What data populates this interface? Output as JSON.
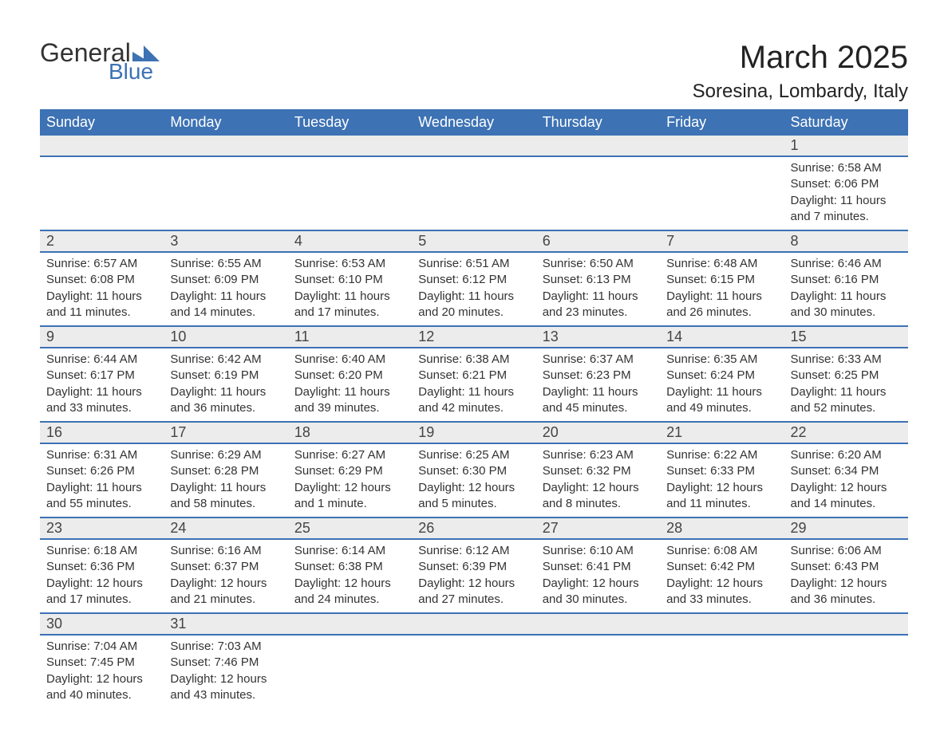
{
  "brand": {
    "text_general": "General",
    "text_blue": "Blue",
    "mark_color": "#3d72b4"
  },
  "title": "March 2025",
  "location": "Soresina, Lombardy, Italy",
  "colors": {
    "header_bg": "#3d72b4",
    "header_text": "#ffffff",
    "daynum_bg": "#ececec",
    "row_border": "#3d72b4",
    "body_text": "#333333",
    "page_bg": "#ffffff"
  },
  "fonts": {
    "title_size_pt": 40,
    "location_size_pt": 24,
    "weekday_size_pt": 18,
    "daynum_size_pt": 18,
    "detail_size_pt": 15,
    "family": "Arial"
  },
  "weekdays": [
    "Sunday",
    "Monday",
    "Tuesday",
    "Wednesday",
    "Thursday",
    "Friday",
    "Saturday"
  ],
  "weeks": [
    [
      null,
      null,
      null,
      null,
      null,
      null,
      {
        "n": "1",
        "sunrise": "Sunrise: 6:58 AM",
        "sunset": "Sunset: 6:06 PM",
        "daylight": "Daylight: 11 hours and 7 minutes."
      }
    ],
    [
      {
        "n": "2",
        "sunrise": "Sunrise: 6:57 AM",
        "sunset": "Sunset: 6:08 PM",
        "daylight": "Daylight: 11 hours and 11 minutes."
      },
      {
        "n": "3",
        "sunrise": "Sunrise: 6:55 AM",
        "sunset": "Sunset: 6:09 PM",
        "daylight": "Daylight: 11 hours and 14 minutes."
      },
      {
        "n": "4",
        "sunrise": "Sunrise: 6:53 AM",
        "sunset": "Sunset: 6:10 PM",
        "daylight": "Daylight: 11 hours and 17 minutes."
      },
      {
        "n": "5",
        "sunrise": "Sunrise: 6:51 AM",
        "sunset": "Sunset: 6:12 PM",
        "daylight": "Daylight: 11 hours and 20 minutes."
      },
      {
        "n": "6",
        "sunrise": "Sunrise: 6:50 AM",
        "sunset": "Sunset: 6:13 PM",
        "daylight": "Daylight: 11 hours and 23 minutes."
      },
      {
        "n": "7",
        "sunrise": "Sunrise: 6:48 AM",
        "sunset": "Sunset: 6:15 PM",
        "daylight": "Daylight: 11 hours and 26 minutes."
      },
      {
        "n": "8",
        "sunrise": "Sunrise: 6:46 AM",
        "sunset": "Sunset: 6:16 PM",
        "daylight": "Daylight: 11 hours and 30 minutes."
      }
    ],
    [
      {
        "n": "9",
        "sunrise": "Sunrise: 6:44 AM",
        "sunset": "Sunset: 6:17 PM",
        "daylight": "Daylight: 11 hours and 33 minutes."
      },
      {
        "n": "10",
        "sunrise": "Sunrise: 6:42 AM",
        "sunset": "Sunset: 6:19 PM",
        "daylight": "Daylight: 11 hours and 36 minutes."
      },
      {
        "n": "11",
        "sunrise": "Sunrise: 6:40 AM",
        "sunset": "Sunset: 6:20 PM",
        "daylight": "Daylight: 11 hours and 39 minutes."
      },
      {
        "n": "12",
        "sunrise": "Sunrise: 6:38 AM",
        "sunset": "Sunset: 6:21 PM",
        "daylight": "Daylight: 11 hours and 42 minutes."
      },
      {
        "n": "13",
        "sunrise": "Sunrise: 6:37 AM",
        "sunset": "Sunset: 6:23 PM",
        "daylight": "Daylight: 11 hours and 45 minutes."
      },
      {
        "n": "14",
        "sunrise": "Sunrise: 6:35 AM",
        "sunset": "Sunset: 6:24 PM",
        "daylight": "Daylight: 11 hours and 49 minutes."
      },
      {
        "n": "15",
        "sunrise": "Sunrise: 6:33 AM",
        "sunset": "Sunset: 6:25 PM",
        "daylight": "Daylight: 11 hours and 52 minutes."
      }
    ],
    [
      {
        "n": "16",
        "sunrise": "Sunrise: 6:31 AM",
        "sunset": "Sunset: 6:26 PM",
        "daylight": "Daylight: 11 hours and 55 minutes."
      },
      {
        "n": "17",
        "sunrise": "Sunrise: 6:29 AM",
        "sunset": "Sunset: 6:28 PM",
        "daylight": "Daylight: 11 hours and 58 minutes."
      },
      {
        "n": "18",
        "sunrise": "Sunrise: 6:27 AM",
        "sunset": "Sunset: 6:29 PM",
        "daylight": "Daylight: 12 hours and 1 minute."
      },
      {
        "n": "19",
        "sunrise": "Sunrise: 6:25 AM",
        "sunset": "Sunset: 6:30 PM",
        "daylight": "Daylight: 12 hours and 5 minutes."
      },
      {
        "n": "20",
        "sunrise": "Sunrise: 6:23 AM",
        "sunset": "Sunset: 6:32 PM",
        "daylight": "Daylight: 12 hours and 8 minutes."
      },
      {
        "n": "21",
        "sunrise": "Sunrise: 6:22 AM",
        "sunset": "Sunset: 6:33 PM",
        "daylight": "Daylight: 12 hours and 11 minutes."
      },
      {
        "n": "22",
        "sunrise": "Sunrise: 6:20 AM",
        "sunset": "Sunset: 6:34 PM",
        "daylight": "Daylight: 12 hours and 14 minutes."
      }
    ],
    [
      {
        "n": "23",
        "sunrise": "Sunrise: 6:18 AM",
        "sunset": "Sunset: 6:36 PM",
        "daylight": "Daylight: 12 hours and 17 minutes."
      },
      {
        "n": "24",
        "sunrise": "Sunrise: 6:16 AM",
        "sunset": "Sunset: 6:37 PM",
        "daylight": "Daylight: 12 hours and 21 minutes."
      },
      {
        "n": "25",
        "sunrise": "Sunrise: 6:14 AM",
        "sunset": "Sunset: 6:38 PM",
        "daylight": "Daylight: 12 hours and 24 minutes."
      },
      {
        "n": "26",
        "sunrise": "Sunrise: 6:12 AM",
        "sunset": "Sunset: 6:39 PM",
        "daylight": "Daylight: 12 hours and 27 minutes."
      },
      {
        "n": "27",
        "sunrise": "Sunrise: 6:10 AM",
        "sunset": "Sunset: 6:41 PM",
        "daylight": "Daylight: 12 hours and 30 minutes."
      },
      {
        "n": "28",
        "sunrise": "Sunrise: 6:08 AM",
        "sunset": "Sunset: 6:42 PM",
        "daylight": "Daylight: 12 hours and 33 minutes."
      },
      {
        "n": "29",
        "sunrise": "Sunrise: 6:06 AM",
        "sunset": "Sunset: 6:43 PM",
        "daylight": "Daylight: 12 hours and 36 minutes."
      }
    ],
    [
      {
        "n": "30",
        "sunrise": "Sunrise: 7:04 AM",
        "sunset": "Sunset: 7:45 PM",
        "daylight": "Daylight: 12 hours and 40 minutes."
      },
      {
        "n": "31",
        "sunrise": "Sunrise: 7:03 AM",
        "sunset": "Sunset: 7:46 PM",
        "daylight": "Daylight: 12 hours and 43 minutes."
      },
      null,
      null,
      null,
      null,
      null
    ]
  ]
}
